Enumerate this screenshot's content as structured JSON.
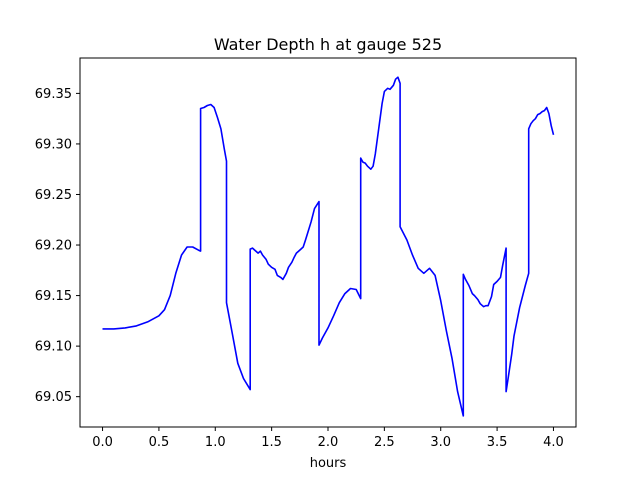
{
  "chart_data": {
    "type": "line",
    "title": "Water Depth h at gauge 525",
    "xlabel": "hours",
    "ylabel": "",
    "xlim": [
      -0.2,
      4.2
    ],
    "ylim": [
      69.02,
      69.385
    ],
    "xticks": [
      0.0,
      0.5,
      1.0,
      1.5,
      2.0,
      2.5,
      3.0,
      3.5,
      4.0
    ],
    "xtick_labels": [
      "0.0",
      "0.5",
      "1.0",
      "1.5",
      "2.0",
      "2.5",
      "3.0",
      "3.5",
      "4.0"
    ],
    "yticks": [
      69.05,
      69.1,
      69.15,
      69.2,
      69.25,
      69.3,
      69.35
    ],
    "ytick_labels": [
      "69.05",
      "69.10",
      "69.15",
      "69.20",
      "69.25",
      "69.30",
      "69.35"
    ],
    "grid": false,
    "colors": {
      "series": "#0000ff"
    },
    "series": [
      {
        "name": "",
        "x": [
          0.0,
          0.1,
          0.2,
          0.3,
          0.4,
          0.5,
          0.55,
          0.6,
          0.65,
          0.7,
          0.75,
          0.8,
          0.85,
          0.87,
          0.87,
          0.9,
          0.93,
          0.96,
          0.99,
          1.02,
          1.05,
          1.08,
          1.1,
          1.1,
          1.15,
          1.2,
          1.25,
          1.31,
          1.31,
          1.33,
          1.35,
          1.38,
          1.4,
          1.42,
          1.45,
          1.47,
          1.5,
          1.53,
          1.55,
          1.58,
          1.6,
          1.63,
          1.65,
          1.68,
          1.7,
          1.72,
          1.74,
          1.76,
          1.78,
          1.8,
          1.82,
          1.85,
          1.88,
          1.92,
          1.92,
          1.95,
          2.0,
          2.05,
          2.1,
          2.15,
          2.2,
          2.25,
          2.29,
          2.29,
          2.31,
          2.33,
          2.35,
          2.38,
          2.4,
          2.42,
          2.45,
          2.48,
          2.5,
          2.53,
          2.55,
          2.58,
          2.6,
          2.62,
          2.64,
          2.64,
          2.7,
          2.75,
          2.8,
          2.85,
          2.9,
          2.95,
          3.0,
          3.05,
          3.1,
          3.15,
          3.2,
          3.2,
          3.22,
          3.25,
          3.28,
          3.3,
          3.33,
          3.35,
          3.38,
          3.4,
          3.42,
          3.45,
          3.47,
          3.5,
          3.53,
          3.55,
          3.58,
          3.58,
          3.6,
          3.63,
          3.65,
          3.7,
          3.75,
          3.78,
          3.78,
          3.8,
          3.82,
          3.84,
          3.86,
          3.88,
          3.9,
          3.92,
          3.94,
          3.96,
          3.98,
          4.0
        ],
        "y": [
          69.117,
          69.117,
          69.118,
          69.12,
          69.124,
          69.13,
          69.136,
          69.15,
          69.172,
          69.19,
          69.198,
          69.198,
          69.195,
          69.194,
          69.335,
          69.336,
          69.338,
          69.339,
          69.336,
          69.326,
          69.315,
          69.295,
          69.283,
          69.143,
          69.113,
          69.083,
          69.068,
          69.057,
          69.196,
          69.197,
          69.195,
          69.192,
          69.194,
          69.19,
          69.186,
          69.181,
          69.178,
          69.176,
          69.17,
          69.168,
          69.166,
          69.172,
          69.178,
          69.183,
          69.188,
          69.192,
          69.194,
          69.196,
          69.198,
          69.205,
          69.212,
          69.223,
          69.236,
          69.243,
          69.101,
          69.108,
          69.118,
          69.13,
          69.143,
          69.152,
          69.157,
          69.156,
          69.147,
          69.286,
          69.282,
          69.281,
          69.278,
          69.275,
          69.278,
          69.29,
          69.315,
          69.34,
          69.352,
          69.355,
          69.354,
          69.358,
          69.364,
          69.366,
          69.36,
          69.218,
          69.205,
          69.19,
          69.177,
          69.172,
          69.177,
          69.17,
          69.145,
          69.115,
          69.088,
          69.055,
          69.031,
          69.171,
          69.166,
          69.16,
          69.152,
          69.15,
          69.146,
          69.142,
          69.139,
          69.14,
          69.14,
          69.149,
          69.161,
          69.164,
          69.168,
          69.18,
          69.197,
          69.055,
          69.07,
          69.092,
          69.11,
          69.138,
          69.16,
          69.172,
          69.315,
          69.32,
          69.323,
          69.325,
          69.329,
          69.33,
          69.332,
          69.333,
          69.336,
          69.33,
          69.318,
          69.309
        ]
      }
    ]
  }
}
